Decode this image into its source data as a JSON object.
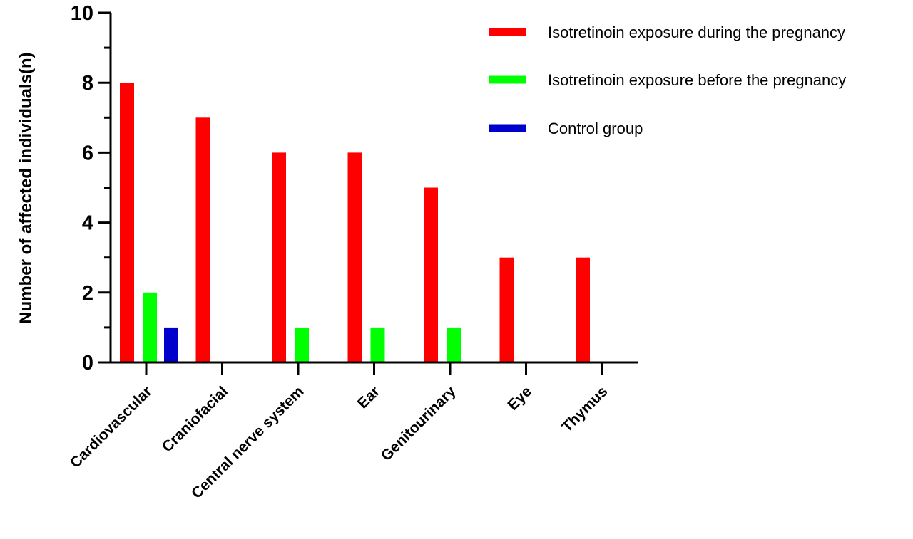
{
  "chart_data": {
    "type": "bar",
    "title": "",
    "xlabel": "",
    "ylabel": "Number of affected individuals(n)",
    "ylim": [
      0,
      10
    ],
    "yticks": [
      "0",
      "2",
      "4",
      "6",
      "8",
      "10"
    ],
    "categories": [
      "Cardiovascular",
      "Craniofacial",
      "Central nerve system",
      "Ear",
      "Genitourinary",
      "Eye",
      "Thymus"
    ],
    "series": [
      {
        "name": "Isotretinoin exposure during the pregnancy",
        "color": "#ff0000",
        "values": [
          8,
          7,
          6,
          6,
          5,
          3,
          3
        ]
      },
      {
        "name": "Isotretinoin exposure before the pregnancy",
        "color": "#00ff00",
        "values": [
          2,
          0,
          1,
          1,
          1,
          0,
          0
        ]
      },
      {
        "name": "Control group",
        "color": "#0000cc",
        "values": [
          1,
          0,
          0,
          0,
          0,
          0,
          0
        ]
      }
    ],
    "legend_position": "top-right",
    "grid": false
  }
}
